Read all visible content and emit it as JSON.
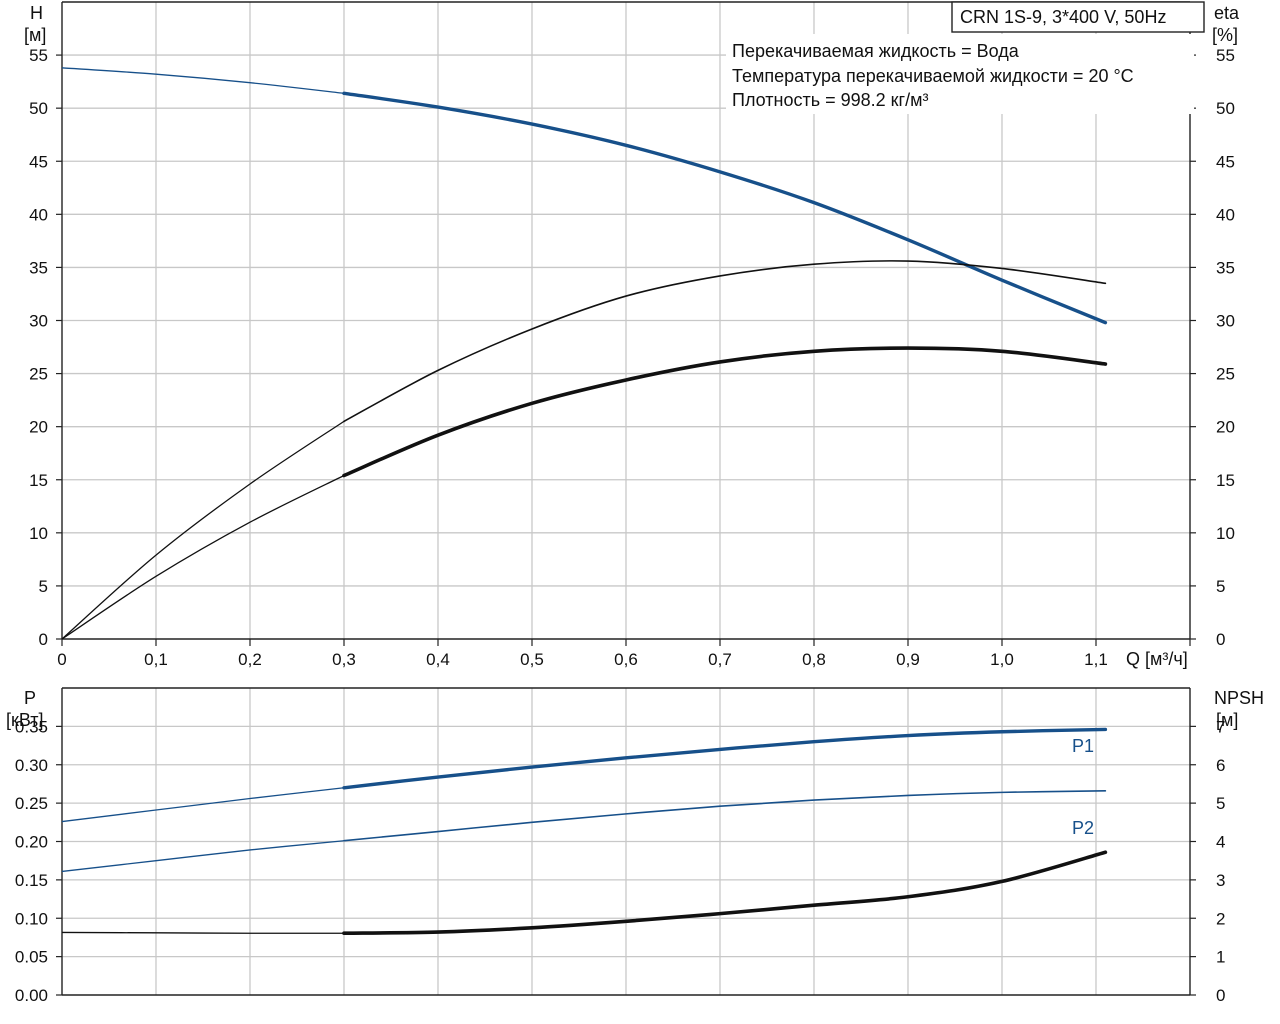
{
  "chart_data": [
    {
      "type": "line",
      "title": "CRN 1S-9, 3*400 V, 50Hz",
      "annotations": [
        "Перекачиваемая жидкость = Вода",
        "Температура перекачиваемой жидкости = 20 °C",
        "Плотность = 998.2 кг/м³"
      ],
      "xlabel": "Q [м³/ч]",
      "ylabel_left": [
        "H",
        "[м]"
      ],
      "ylabel_right": [
        "eta",
        "[%]"
      ],
      "xlim": [
        0,
        1.2
      ],
      "ylim": [
        0,
        60
      ],
      "x_ticks": [
        "0",
        "0,1",
        "0,2",
        "0,3",
        "0,4",
        "0,5",
        "0,6",
        "0,7",
        "0,8",
        "0,9",
        "1,0",
        "1,1"
      ],
      "y_ticks": [
        "0",
        "5",
        "10",
        "15",
        "20",
        "25",
        "30",
        "35",
        "40",
        "45",
        "50",
        "55"
      ],
      "grid": true,
      "series": [
        {
          "key": "H",
          "color": "#17508a",
          "points": [
            [
              0,
              53.8
            ],
            [
              0.1,
              53.2
            ],
            [
              0.2,
              52.4
            ],
            [
              0.3,
              51.4
            ],
            [
              0.4,
              50.1
            ],
            [
              0.5,
              48.5
            ],
            [
              0.6,
              46.5
            ],
            [
              0.7,
              44.0
            ],
            [
              0.8,
              41.1
            ],
            [
              0.9,
              37.6
            ],
            [
              1.0,
              33.8
            ],
            [
              1.11,
              29.8
            ]
          ],
          "duty_from": 0.3
        },
        {
          "key": "eta",
          "color": "#111111",
          "points": [
            [
              0,
              0
            ],
            [
              0.1,
              7.9
            ],
            [
              0.2,
              14.6
            ],
            [
              0.3,
              20.5
            ],
            [
              0.4,
              25.3
            ],
            [
              0.5,
              29.2
            ],
            [
              0.6,
              32.3
            ],
            [
              0.7,
              34.2
            ],
            [
              0.8,
              35.3
            ],
            [
              0.9,
              35.6
            ],
            [
              1.0,
              34.9
            ],
            [
              1.11,
              33.5
            ]
          ],
          "duty_from": 0.3
        },
        {
          "key": "eta_total",
          "color": "#111111",
          "points": [
            [
              0,
              0
            ],
            [
              0.1,
              5.9
            ],
            [
              0.2,
              11.0
            ],
            [
              0.3,
              15.4
            ],
            [
              0.4,
              19.2
            ],
            [
              0.5,
              22.2
            ],
            [
              0.6,
              24.4
            ],
            [
              0.7,
              26.1
            ],
            [
              0.8,
              27.1
            ],
            [
              0.9,
              27.4
            ],
            [
              1.0,
              27.1
            ],
            [
              1.11,
              25.9
            ]
          ],
          "duty_from": 0.3
        }
      ]
    },
    {
      "type": "line",
      "ylabel_left": [
        "P",
        "[кВт]"
      ],
      "ylabel_right": [
        "NPSH",
        "[м]"
      ],
      "xlim": [
        0,
        1.2
      ],
      "ylim": [
        0,
        0.4
      ],
      "y_ticks": [
        "0.00",
        "0.05",
        "0.10",
        "0.15",
        "0.20",
        "0.25",
        "0.30",
        "0.35"
      ],
      "y_ticks_right": [
        "0",
        "1",
        "2",
        "3",
        "4",
        "5",
        "6",
        "7"
      ],
      "grid": true,
      "series": [
        {
          "key": "P1",
          "name": "P1",
          "color": "#17508a",
          "points": [
            [
              0,
              0.226
            ],
            [
              0.1,
              0.241
            ],
            [
              0.2,
              0.256
            ],
            [
              0.3,
              0.27
            ],
            [
              0.4,
              0.284
            ],
            [
              0.5,
              0.297
            ],
            [
              0.6,
              0.309
            ],
            [
              0.7,
              0.32
            ],
            [
              0.8,
              0.33
            ],
            [
              0.9,
              0.338
            ],
            [
              1.0,
              0.343
            ],
            [
              1.11,
              0.346
            ]
          ],
          "duty_from": 0.3
        },
        {
          "key": "P2",
          "name": "P2",
          "color": "#17508a",
          "points": [
            [
              0,
              0.161
            ],
            [
              0.1,
              0.175
            ],
            [
              0.2,
              0.189
            ],
            [
              0.3,
              0.201
            ],
            [
              0.4,
              0.213
            ],
            [
              0.5,
              0.225
            ],
            [
              0.6,
              0.236
            ],
            [
              0.7,
              0.246
            ],
            [
              0.8,
              0.254
            ],
            [
              0.9,
              0.26
            ],
            [
              1.0,
              0.264
            ],
            [
              1.11,
              0.266
            ]
          ],
          "duty_from": 0.3
        },
        {
          "key": "NPSH",
          "color": "#111111",
          "points_right_axis": true,
          "points": [
            [
              0,
              1.63
            ],
            [
              0.1,
              1.62
            ],
            [
              0.2,
              1.61
            ],
            [
              0.3,
              1.61
            ],
            [
              0.4,
              1.64
            ],
            [
              0.5,
              1.75
            ],
            [
              0.6,
              1.92
            ],
            [
              0.7,
              2.12
            ],
            [
              0.8,
              2.34
            ],
            [
              0.9,
              2.56
            ],
            [
              1.0,
              2.96
            ],
            [
              1.11,
              3.72
            ]
          ],
          "duty_from": 0.3
        }
      ]
    }
  ]
}
